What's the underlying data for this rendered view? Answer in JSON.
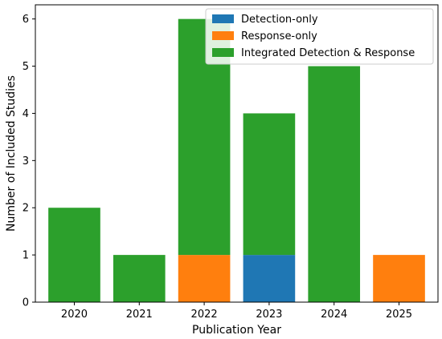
{
  "chart_data": {
    "type": "bar",
    "stacked": true,
    "title": "",
    "xlabel": "Publication Year",
    "ylabel": "Number of Included Studies",
    "categories": [
      "2020",
      "2021",
      "2022",
      "2023",
      "2024",
      "2025"
    ],
    "ylim": [
      0,
      6.3
    ],
    "yticks": [
      0,
      1,
      2,
      3,
      4,
      5,
      6
    ],
    "grid": false,
    "legend_position": "top-right",
    "series": [
      {
        "name": "Detection-only",
        "color": "#1f77b4",
        "values": [
          0,
          0,
          0,
          1,
          0,
          0
        ]
      },
      {
        "name": "Response-only",
        "color": "#ff7f0e",
        "values": [
          0,
          0,
          1,
          0,
          0,
          1
        ]
      },
      {
        "name": "Integrated Detection & Response",
        "color": "#2ca02c",
        "values": [
          2,
          1,
          5,
          3,
          5,
          0
        ]
      }
    ]
  }
}
